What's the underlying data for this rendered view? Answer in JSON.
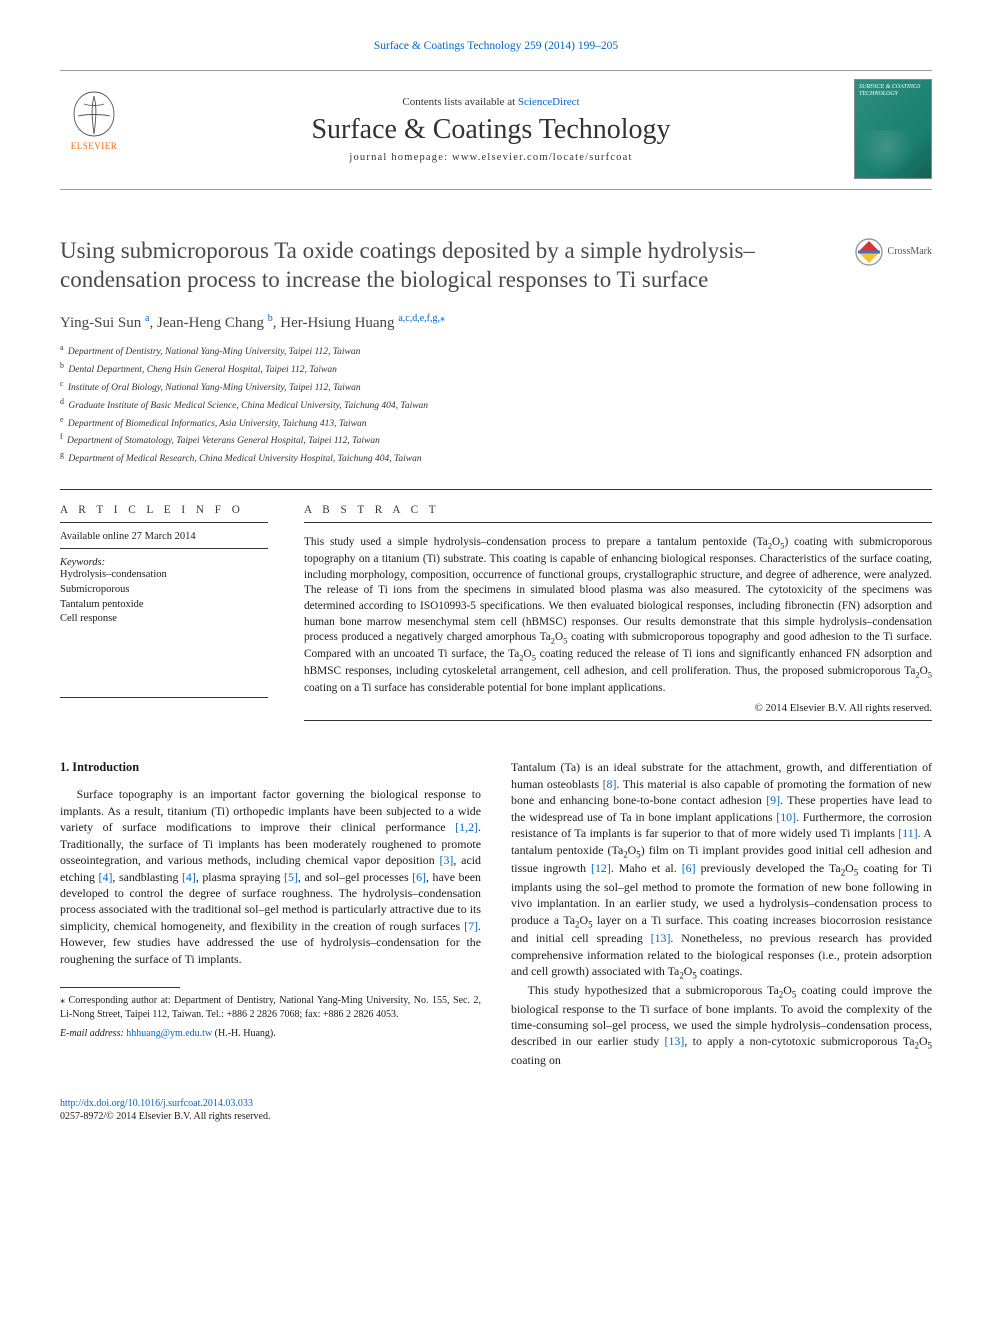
{
  "top_citation_prefix": "Surface & Coatings Technology 259 (2014) 199–205",
  "publisher_logo_text": "ELSEVIER",
  "cover_caption": "SURFACE & COATINGS TECHNOLOGY",
  "header": {
    "contents_prefix": "Contents lists available at ",
    "contents_link": "ScienceDirect",
    "journal_title": "Surface & Coatings Technology",
    "homepage_prefix": "journal homepage: ",
    "homepage_url": "www.elsevier.com/locate/surfcoat"
  },
  "crossmark_label": "CrossMark",
  "article_title": "Using submicroporous Ta oxide coatings deposited by a simple hydrolysis–condensation process to increase the biological responses to Ti surface",
  "authors": [
    {
      "name": "Ying-Sui Sun",
      "sup": "a"
    },
    {
      "name": "Jean-Heng Chang",
      "sup": "b"
    },
    {
      "name": "Her-Hsiung Huang",
      "sup": "a,c,d,e,f,g,",
      "corr": true
    }
  ],
  "affiliations": [
    {
      "key": "a",
      "text": "Department of Dentistry, National Yang-Ming University, Taipei 112, Taiwan"
    },
    {
      "key": "b",
      "text": "Dental Department, Cheng Hsin General Hospital, Taipei 112, Taiwan"
    },
    {
      "key": "c",
      "text": "Institute of Oral Biology, National Yang-Ming University, Taipei 112, Taiwan"
    },
    {
      "key": "d",
      "text": "Graduate Institute of Basic Medical Science, China Medical University, Taichung 404, Taiwan"
    },
    {
      "key": "e",
      "text": "Department of Biomedical Informatics, Asia University, Taichung 413, Taiwan"
    },
    {
      "key": "f",
      "text": "Department of Stomatology, Taipei Veterans General Hospital, Taipei 112, Taiwan"
    },
    {
      "key": "g",
      "text": "Department of Medical Research, China Medical University Hospital, Taichung 404, Taiwan"
    }
  ],
  "info_label": "A R T I C L E   I N F O",
  "abstract_label": "A B S T R A C T",
  "available_line": "Available online 27 March 2014",
  "keywords_label": "Keywords:",
  "keywords": [
    "Hydrolysis–condensation",
    "Submicroporous",
    "Tantalum pentoxide",
    "Cell response"
  ],
  "abstract_html": "This study used a simple hydrolysis–condensation process to prepare a tantalum pentoxide (Ta<sub>2</sub>O<sub>5</sub>) coating with submicroporous topography on a titanium (Ti) substrate. This coating is capable of enhancing biological responses. Characteristics of the surface coating, including morphology, composition, occurrence of functional groups, crystallographic structure, and degree of adherence, were analyzed. The release of Ti ions from the specimens in simulated blood plasma was also measured. The cytotoxicity of the specimens was determined according to ISO10993-5 specifications. We then evaluated biological responses, including fibronectin (FN) adsorption and human bone marrow mesenchymal stem cell (hBMSC) responses. Our results demonstrate that this simple hydrolysis–condensation process produced a negatively charged amorphous Ta<sub>2</sub>O<sub>5</sub> coating with submicroporous topography and good adhesion to the Ti surface. Compared with an uncoated Ti surface, the Ta<sub>2</sub>O<sub>5</sub> coating reduced the release of Ti ions and significantly enhanced FN adsorption and hBMSC responses, including cytoskeletal arrangement, cell adhesion, and cell proliferation. Thus, the proposed submicroporous Ta<sub>2</sub>O<sub>5</sub> coating on a Ti surface has considerable potential for bone implant applications.",
  "copyright": "© 2014 Elsevier B.V. All rights reserved.",
  "section_heading": "1. Introduction",
  "intro_p1_html": "Surface topography is an important factor governing the biological response to implants. As a result, titanium (Ti) orthopedic implants have been subjected to a wide variety of surface modifications to improve their clinical performance <a href='#' class='ref'>[1,2]</a>. Traditionally, the surface of Ti implants has been moderately roughened to promote osseointegration, and various methods, including chemical vapor deposition <a href='#' class='ref'>[3]</a>, acid etching <a href='#' class='ref'>[4]</a>, sandblasting <a href='#' class='ref'>[4]</a>, plasma spraying <a href='#' class='ref'>[5]</a>, and sol–gel processes <a href='#' class='ref'>[6]</a>, have been developed to control the degree of surface roughness. The hydrolysis–condensation process associated with the traditional sol–gel method is particularly attractive due to its simplicity, chemical homogeneity, and flexibility in the creation of rough surfaces <a href='#' class='ref'>[7]</a>. However, few studies have addressed the use of hydrolysis–condensation for the roughening the surface of Ti implants.",
  "intro_p2_html": "Tantalum (Ta) is an ideal substrate for the attachment, growth, and differentiation of human osteoblasts <a href='#' class='ref'>[8]</a>. This material is also capable of promoting the formation of new bone and enhancing bone-to-bone contact adhesion <a href='#' class='ref'>[9]</a>. These properties have lead to the widespread use of Ta in bone implant applications <a href='#' class='ref'>[10]</a>. Furthermore, the corrosion resistance of Ta implants is far superior to that of more widely used Ti implants <a href='#' class='ref'>[11]</a>. A tantalum pentoxide (Ta<sub>2</sub>O<sub>5</sub>) film on Ti implant provides good initial cell adhesion and tissue ingrowth <a href='#' class='ref'>[12]</a>. Maho et al. <a href='#' class='ref'>[6]</a> previously developed the Ta<sub>2</sub>O<sub>5</sub> coating for Ti implants using the sol–gel method to promote the formation of new bone following in vivo implantation. In an earlier study, we used a hydrolysis–condensation process to produce a Ta<sub>2</sub>O<sub>5</sub> layer on a Ti surface. This coating increases biocorrosion resistance and initial cell spreading <a href='#' class='ref'>[13]</a>. Nonetheless, no previous research has provided comprehensive information related to the biological responses (i.e., protein adsorption and cell growth) associated with Ta<sub>2</sub>O<sub>5</sub> coatings.",
  "intro_p3_html": "This study hypothesized that a submicroporous Ta<sub>2</sub>O<sub>5</sub> coating could improve the biological response to the Ti surface of bone implants. To avoid the complexity of the time-consuming sol–gel process, we used the simple hydrolysis–condensation process, described in our earlier study <a href='#' class='ref'>[13]</a>, to apply a non-cytotoxic submicroporous Ta<sub>2</sub>O<sub>5</sub> coating on",
  "footnote": {
    "corr_marker": "⁎",
    "corr_text": "Corresponding author at: Department of Dentistry, National Yang-Ming University, No. 155, Sec. 2, Li-Nong Street, Taipei 112, Taiwan. Tel.: +886 2 2826 7068; fax: +886 2 2826 4053.",
    "email_label": "E-mail address:",
    "email": "hhhuang@ym.edu.tw",
    "email_name": "(H.-H. Huang)."
  },
  "footer": {
    "doi": "http://dx.doi.org/10.1016/j.surfcoat.2014.03.033",
    "issn_line": "0257-8972/© 2014 Elsevier B.V. All rights reserved."
  },
  "colors": {
    "link": "#0066cc",
    "text": "#1a1a1a",
    "elsevier_orange": "#ff6600",
    "cover_bg": "#2d8f7f"
  }
}
